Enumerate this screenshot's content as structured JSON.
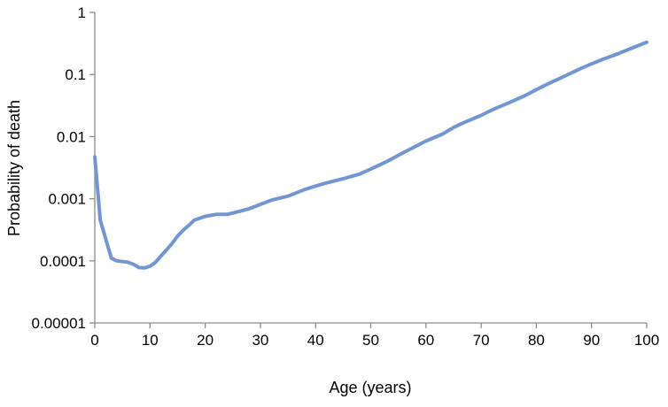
{
  "chart_data": {
    "type": "line",
    "title": "",
    "xlabel": "Age (years)",
    "ylabel": "Probability of death",
    "x_scale": "linear",
    "y_scale": "log",
    "xlim": [
      0,
      100
    ],
    "ylim": [
      1e-05,
      1
    ],
    "x_ticks": [
      0,
      10,
      20,
      30,
      40,
      50,
      60,
      70,
      80,
      90,
      100
    ],
    "x_tick_labels": [
      "0",
      "10",
      "20",
      "30",
      "40",
      "50",
      "60",
      "70",
      "80",
      "90",
      "100"
    ],
    "y_ticks": [
      1e-05,
      0.0001,
      0.001,
      0.01,
      0.1,
      1
    ],
    "y_tick_labels": [
      "0.00001",
      "0.0001",
      "0.001",
      "0.01",
      "0.1",
      "1"
    ],
    "grid": false,
    "legend": "none",
    "line_color": "#7296d2",
    "series": [
      {
        "x": [
          0,
          1,
          3,
          4,
          6,
          7,
          8,
          9,
          10,
          11,
          12,
          13,
          14,
          15,
          16,
          17,
          18,
          20,
          22,
          24,
          26,
          28,
          30,
          32,
          35,
          38,
          40,
          42,
          45,
          48,
          50,
          53,
          55,
          57,
          60,
          63,
          65,
          67,
          70,
          72,
          75,
          78,
          80,
          82,
          85,
          88,
          90,
          92,
          95,
          97,
          100
        ],
        "values": [
          0.0047,
          0.00045,
          0.00011,
          0.0001,
          9.5e-05,
          8.8e-05,
          7.8e-05,
          7.7e-05,
          8.2e-05,
          9.5e-05,
          0.00012,
          0.00015,
          0.00019,
          0.00025,
          0.00031,
          0.00037,
          0.00045,
          0.00052,
          0.00056,
          0.00056,
          0.00062,
          0.00069,
          0.00081,
          0.00095,
          0.0011,
          0.0014,
          0.0016,
          0.0018,
          0.0021,
          0.0025,
          0.003,
          0.004,
          0.005,
          0.0062,
          0.0085,
          0.011,
          0.014,
          0.017,
          0.022,
          0.027,
          0.035,
          0.046,
          0.057,
          0.07,
          0.093,
          0.124,
          0.148,
          0.175,
          0.22,
          0.26,
          0.33
        ]
      }
    ]
  }
}
